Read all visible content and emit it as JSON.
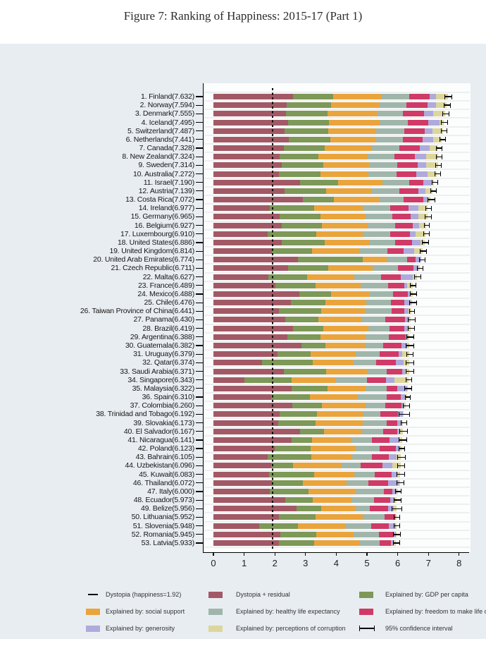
{
  "title": "Figure 7: Ranking of Happiness: 2015-17 (Part 1)",
  "colors": {
    "dystopia_residual": "#a25965",
    "gdp": "#7d9857",
    "social_support": "#eaa43c",
    "healthy_life": "#a0b6ab",
    "freedom": "#d03a66",
    "generosity": "#aeaadc",
    "corruption": "#dcd69c",
    "background": "#e8edf1",
    "plot_background": "#fcfdfd",
    "gridline": "#edeff0",
    "axis": "#000000"
  },
  "legend": {
    "items": [
      {
        "icon": "dash-icon",
        "label": "Dystopia (happiness=1.92)",
        "col": 0,
        "row": 0
      },
      {
        "icon": "swatch",
        "color_key": "dystopia_residual",
        "label": "Dystopia + residual",
        "col": 1,
        "row": 0
      },
      {
        "icon": "swatch",
        "color_key": "gdp",
        "label": "Explained by: GDP per capita",
        "col": 2,
        "row": 0
      },
      {
        "icon": "swatch",
        "color_key": "social_support",
        "label": "Explained by: social support",
        "col": 0,
        "row": 1
      },
      {
        "icon": "swatch",
        "color_key": "healthy_life",
        "label": "Explained by: healthy life expectancy",
        "col": 1,
        "row": 1
      },
      {
        "icon": "swatch",
        "color_key": "freedom",
        "label": "Explained by: freedom to make life choices",
        "col": 2,
        "row": 1
      },
      {
        "icon": "swatch",
        "color_key": "generosity",
        "label": "Explained by: generosity",
        "col": 0,
        "row": 2
      },
      {
        "icon": "swatch",
        "color_key": "corruption",
        "label": "Explained by: perceptions of corruption",
        "col": 1,
        "row": 2
      },
      {
        "icon": "errorbar-icon",
        "label": "95% confidence interval",
        "col": 2,
        "row": 2
      }
    ]
  },
  "chart_data": {
    "type": "bar",
    "orientation": "horizontal",
    "stacked": true,
    "title": "Figure 7: Ranking of Happiness: 2015-17 (Part 1)",
    "xlabel": "",
    "ylabel": "",
    "xlim": [
      0,
      8
    ],
    "x_ticks": [
      "0",
      "1",
      "2",
      "3",
      "4",
      "5",
      "6",
      "7",
      "8"
    ],
    "grid": "faint horizontal category separators",
    "legend_position": "bottom",
    "dystopia_line_value": 1.92,
    "segment_order": [
      "dystopia_residual",
      "gdp",
      "social_support",
      "healthy_life",
      "freedom",
      "generosity",
      "corruption"
    ],
    "segment_names": {
      "dystopia_residual": "Dystopia + residual",
      "gdp": "Explained by: GDP per capita",
      "social_support": "Explained by: social support",
      "healthy_life": "Explained by: healthy life expectancy",
      "freedom": "Explained by: freedom to make life choices",
      "generosity": "Explained by: generosity",
      "corruption": "Explained by: perceptions of corruption",
      "ci": "95% confidence interval"
    },
    "countries": [
      {
        "rank": 1,
        "name": "Finland",
        "score": 7.632,
        "seg": [
          2.595,
          1.305,
          1.592,
          0.874,
          0.681,
          0.192,
          0.393
        ],
        "ci": 0.1
      },
      {
        "rank": 2,
        "name": "Norway",
        "score": 7.594,
        "seg": [
          2.383,
          1.456,
          1.582,
          0.861,
          0.686,
          0.286,
          0.34
        ],
        "ci": 0.09
      },
      {
        "rank": 3,
        "name": "Denmark",
        "score": 7.555,
        "seg": [
          2.371,
          1.351,
          1.59,
          0.868,
          0.683,
          0.284,
          0.408
        ],
        "ci": 0.09
      },
      {
        "rank": 4,
        "name": "Iceland",
        "score": 7.495,
        "seg": [
          2.426,
          1.343,
          1.644,
          0.914,
          0.677,
          0.353,
          0.138
        ],
        "ci": 0.09
      },
      {
        "rank": 5,
        "name": "Switzerland",
        "score": 7.487,
        "seg": [
          2.318,
          1.42,
          1.549,
          0.927,
          0.66,
          0.256,
          0.357
        ],
        "ci": 0.09
      },
      {
        "rank": 6,
        "name": "Netherlands",
        "score": 7.441,
        "seg": [
          2.448,
          1.361,
          1.488,
          0.878,
          0.638,
          0.333,
          0.295
        ],
        "ci": 0.08
      },
      {
        "rank": 7,
        "name": "Canada",
        "score": 7.328,
        "seg": [
          2.305,
          1.33,
          1.532,
          0.896,
          0.653,
          0.321,
          0.291
        ],
        "ci": 0.08
      },
      {
        "rank": 8,
        "name": "New Zealand",
        "score": 7.324,
        "seg": [
          2.156,
          1.268,
          1.601,
          0.876,
          0.669,
          0.365,
          0.389
        ],
        "ci": 0.08
      },
      {
        "rank": 9,
        "name": "Sweden",
        "score": 7.314,
        "seg": [
          2.218,
          1.355,
          1.501,
          0.913,
          0.659,
          0.285,
          0.383
        ],
        "ci": 0.08
      },
      {
        "rank": 10,
        "name": "Australia",
        "score": 7.272,
        "seg": [
          2.139,
          1.34,
          1.573,
          0.91,
          0.647,
          0.361,
          0.302
        ],
        "ci": 0.08
      },
      {
        "rank": 11,
        "name": "Israel",
        "score": 7.19,
        "seg": [
          2.817,
          1.244,
          1.433,
          0.888,
          0.464,
          0.262,
          0.082
        ],
        "ci": 0.07
      },
      {
        "rank": 12,
        "name": "Austria",
        "score": 7.139,
        "seg": [
          2.32,
          1.341,
          1.504,
          0.891,
          0.617,
          0.242,
          0.224
        ],
        "ci": 0.08
      },
      {
        "rank": 13,
        "name": "Costa Rica",
        "score": 7.072,
        "seg": [
          2.91,
          1.01,
          1.459,
          0.817,
          0.632,
          0.143,
          0.101
        ],
        "ci": 0.11
      },
      {
        "rank": 14,
        "name": "Ireland",
        "score": 6.977,
        "seg": [
          1.843,
          1.448,
          1.583,
          0.876,
          0.614,
          0.307,
          0.306
        ],
        "ci": 0.08
      },
      {
        "rank": 15,
        "name": "Germany",
        "score": 6.965,
        "seg": [
          2.151,
          1.34,
          1.474,
          0.861,
          0.586,
          0.273,
          0.28
        ],
        "ci": 0.09
      },
      {
        "rank": 16,
        "name": "Belgium",
        "score": 6.927,
        "seg": [
          2.215,
          1.324,
          1.483,
          0.894,
          0.583,
          0.188,
          0.24
        ],
        "ci": 0.08
      },
      {
        "rank": 17,
        "name": "Luxembourg",
        "score": 6.91,
        "seg": [
          1.769,
          1.576,
          1.52,
          0.896,
          0.632,
          0.196,
          0.321
        ],
        "ci": 0.08
      },
      {
        "rank": 18,
        "name": "United States",
        "score": 6.886,
        "seg": [
          2.227,
          1.398,
          1.471,
          0.819,
          0.547,
          0.291,
          0.133
        ],
        "ci": 0.09
      },
      {
        "rank": 19,
        "name": "United Kingdom",
        "score": 6.814,
        "seg": [
          1.906,
          1.301,
          1.559,
          0.889,
          0.533,
          0.354,
          0.272
        ],
        "ci": 0.09
      },
      {
        "rank": 20,
        "name": "United Arab Emirates",
        "score": 6.774,
        "seg": [
          2.762,
          2.096,
          0.776,
          0.67,
          0.284,
          0.186,
          0.0
        ],
        "ci": 0.08
      },
      {
        "rank": 21,
        "name": "Czech Republic",
        "score": 6.711,
        "seg": [
          2.428,
          1.301,
          1.464,
          0.824,
          0.49,
          0.168,
          0.036
        ],
        "ci": 0.08
      },
      {
        "rank": 22,
        "name": "Malta",
        "score": 6.627,
        "seg": [
          1.785,
          1.27,
          1.525,
          0.884,
          0.645,
          0.376,
          0.142
        ],
        "ci": 0.09
      },
      {
        "rank": 23,
        "name": "France",
        "score": 6.489,
        "seg": [
          2.028,
          1.293,
          1.466,
          0.908,
          0.52,
          0.098,
          0.176
        ],
        "ci": 0.08
      },
      {
        "rank": 24,
        "name": "Mexico",
        "score": 6.488,
        "seg": [
          2.794,
          1.038,
          1.252,
          0.761,
          0.479,
          0.069,
          0.095
        ],
        "ci": 0.1
      },
      {
        "rank": 25,
        "name": "Chile",
        "score": 6.476,
        "seg": [
          2.517,
          1.131,
          1.331,
          0.808,
          0.431,
          0.197,
          0.061
        ],
        "ci": 0.1
      },
      {
        "rank": 26,
        "name": "Taiwan Province of China",
        "score": 6.441,
        "seg": [
          2.136,
          1.365,
          1.436,
          0.857,
          0.418,
          0.151,
          0.078
        ],
        "ci": 0.07
      },
      {
        "rank": 27,
        "name": "Panama",
        "score": 6.43,
        "seg": [
          2.336,
          1.072,
          1.424,
          0.774,
          0.624,
          0.146,
          0.054
        ],
        "ci": 0.11
      },
      {
        "rank": 28,
        "name": "Brazil",
        "score": 6.419,
        "seg": [
          2.593,
          0.986,
          1.474,
          0.675,
          0.493,
          0.11,
          0.088
        ],
        "ci": 0.1
      },
      {
        "rank": 29,
        "name": "Argentina",
        "score": 6.388,
        "seg": [
          2.417,
          1.073,
          1.468,
          0.744,
          0.57,
          0.062,
          0.054
        ],
        "ci": 0.1
      },
      {
        "rank": 30,
        "name": "Guatemala",
        "score": 6.382,
        "seg": [
          2.87,
          0.781,
          1.269,
          0.608,
          0.604,
          0.179,
          0.071
        ],
        "ci": 0.11
      },
      {
        "rank": 31,
        "name": "Uruguay",
        "score": 6.379,
        "seg": [
          2.081,
          1.093,
          1.459,
          0.771,
          0.625,
          0.13,
          0.22
        ],
        "ci": 0.1
      },
      {
        "rank": 32,
        "name": "Qatar",
        "score": 6.374,
        "seg": [
          1.593,
          1.649,
          1.303,
          0.748,
          0.654,
          0.256,
          0.171
        ],
        "ci": 0.12
      },
      {
        "rank": 33,
        "name": "Saudi Arabia",
        "score": 6.371,
        "seg": [
          2.289,
          1.379,
          1.331,
          0.633,
          0.509,
          0.098,
          0.132
        ],
        "ci": 0.11
      },
      {
        "rank": 34,
        "name": "Singapore",
        "score": 6.343,
        "seg": [
          1.006,
          1.529,
          1.451,
          1.008,
          0.631,
          0.261,
          0.457
        ],
        "ci": 0.08
      },
      {
        "rank": 35,
        "name": "Malaysia",
        "score": 6.322,
        "seg": [
          2.544,
          1.161,
          1.258,
          0.669,
          0.356,
          0.31,
          0.024
        ],
        "ci": 0.1
      },
      {
        "rank": 36,
        "name": "Spain",
        "score": 6.31,
        "seg": [
          1.891,
          1.251,
          1.538,
          0.965,
          0.449,
          0.142,
          0.074
        ],
        "ci": 0.07
      },
      {
        "rank": 37,
        "name": "Colombia",
        "score": 6.26,
        "seg": [
          2.562,
          0.96,
          1.439,
          0.635,
          0.531,
          0.099,
          0.034
        ],
        "ci": 0.1
      },
      {
        "rank": 38,
        "name": "Trinidad and Tobago",
        "score": 6.192,
        "seg": [
          2.148,
          1.223,
          1.492,
          0.564,
          0.575,
          0.171,
          0.019
        ],
        "ci": 0.17
      },
      {
        "rank": 39,
        "name": "Slovakia",
        "score": 6.173,
        "seg": [
          2.119,
          1.21,
          1.537,
          0.776,
          0.354,
          0.153,
          0.024
        ],
        "ci": 0.08
      },
      {
        "rank": 40,
        "name": "El Salvador",
        "score": 6.167,
        "seg": [
          2.814,
          0.794,
          1.242,
          0.675,
          0.462,
          0.098,
          0.082
        ],
        "ci": 0.11
      },
      {
        "rank": 41,
        "name": "Nicaragua",
        "score": 6.141,
        "seg": [
          2.55,
          0.668,
          1.247,
          0.702,
          0.572,
          0.287,
          0.115
        ],
        "ci": 0.11
      },
      {
        "rank": 42,
        "name": "Poland",
        "score": 6.123,
        "seg": [
          2.0,
          1.176,
          1.448,
          0.781,
          0.546,
          0.108,
          0.064
        ],
        "ci": 0.08
      },
      {
        "rank": 43,
        "name": "Bahrain",
        "score": 6.105,
        "seg": [
          1.772,
          1.42,
          1.323,
          0.657,
          0.536,
          0.255,
          0.142
        ],
        "ci": 0.12
      },
      {
        "rank": 44,
        "name": "Uzbekistan",
        "score": 6.096,
        "seg": [
          1.877,
          0.719,
          1.584,
          0.605,
          0.724,
          0.328,
          0.259
        ],
        "ci": 0.1
      },
      {
        "rank": 45,
        "name": "Kuwait",
        "score": 6.083,
        "seg": [
          1.806,
          1.474,
          1.301,
          0.675,
          0.554,
          0.167,
          0.106
        ],
        "ci": 0.12
      },
      {
        "rank": 46,
        "name": "Thailand",
        "score": 6.072,
        "seg": [
          1.902,
          1.016,
          1.417,
          0.707,
          0.637,
          0.364,
          0.029
        ],
        "ci": 0.1
      },
      {
        "rank": 47,
        "name": "Italy",
        "score": 6.0,
        "seg": [
          1.843,
          1.264,
          1.501,
          0.946,
          0.281,
          0.137,
          0.028
        ],
        "ci": 0.08
      },
      {
        "rank": 48,
        "name": "Ecuador",
        "score": 5.973,
        "seg": [
          2.338,
          0.896,
          1.265,
          0.737,
          0.523,
          0.127,
          0.087
        ],
        "ci": 0.1
      },
      {
        "rank": 49,
        "name": "Belize",
        "score": 5.956,
        "seg": [
          2.709,
          0.807,
          1.101,
          0.474,
          0.593,
          0.183,
          0.089
        ],
        "ci": 0.15
      },
      {
        "rank": 50,
        "name": "Lithuania",
        "score": 5.952,
        "seg": [
          2.13,
          1.197,
          1.527,
          0.716,
          0.35,
          0.026,
          0.006
        ],
        "ci": 0.08
      },
      {
        "rank": 51,
        "name": "Slovenia",
        "score": 5.948,
        "seg": [
          1.5,
          1.258,
          1.523,
          0.857,
          0.564,
          0.232,
          0.014
        ],
        "ci": 0.08
      },
      {
        "rank": 52,
        "name": "Romania",
        "score": 5.945,
        "seg": [
          2.177,
          1.162,
          1.232,
          0.825,
          0.462,
          0.083,
          0.004
        ],
        "ci": 0.1
      },
      {
        "rank": 53,
        "name": "Latvia",
        "score": 5.933,
        "seg": [
          2.139,
          1.148,
          1.454,
          0.671,
          0.363,
          0.092,
          0.066
        ],
        "ci": 0.09
      }
    ]
  }
}
